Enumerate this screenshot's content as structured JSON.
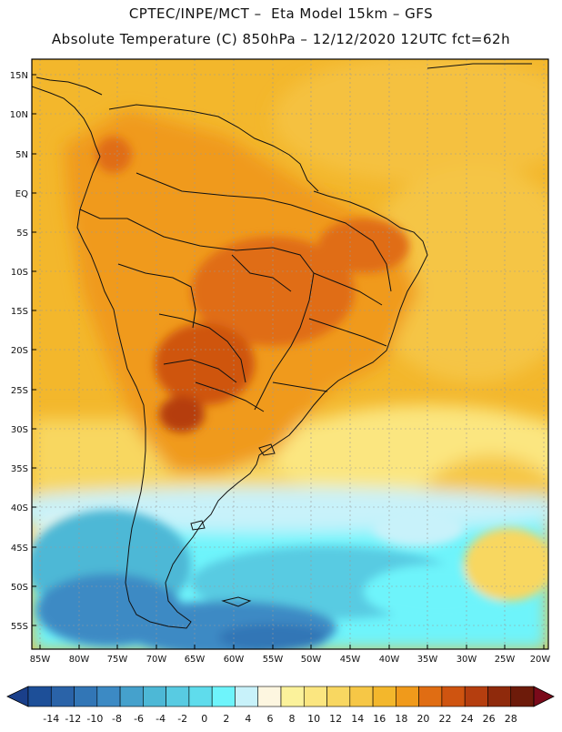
{
  "header": {
    "title_line1": "CPTEC/INPE/MCT –  Eta Model 15km – GFS",
    "title_line2": "Absolute Temperature (C) 850hPa – 12/12/2020 12UTC fct=62h"
  },
  "map": {
    "lat_labels": [
      "15N",
      "10N",
      "5N",
      "EQ",
      "5S",
      "10S",
      "15S",
      "20S",
      "25S",
      "30S",
      "35S",
      "40S",
      "45S",
      "50S",
      "55S"
    ],
    "lon_labels": [
      "85W",
      "80W",
      "75W",
      "70W",
      "65W",
      "60W",
      "55W",
      "50W",
      "45W",
      "40W",
      "35W",
      "30W",
      "25W",
      "20W"
    ]
  },
  "colorbar": {
    "labels": [
      "-14",
      "-12",
      "-10",
      "-8",
      "-6",
      "-4",
      "-2",
      "0",
      "2",
      "4",
      "6",
      "8",
      "10",
      "12",
      "14",
      "16",
      "18",
      "20",
      "22",
      "24",
      "26",
      "28"
    ],
    "colors": [
      "#1d4f98",
      "#2a63a8",
      "#3276b6",
      "#3c8ac4",
      "#45a1cc",
      "#4db8d6",
      "#58cbe2",
      "#5fdcec",
      "#6ef4fb",
      "#c8f2fa",
      "#fdf6e0",
      "#fbf29b",
      "#fbe680",
      "#f8d761",
      "#f6c746",
      "#f3b72c",
      "#f09a1b",
      "#e06d13",
      "#cf5410",
      "#b53e0f",
      "#8f2a0c",
      "#6d1b0a"
    ],
    "under_color": "#1a3f8a",
    "over_color": "#7a0a1a"
  }
}
